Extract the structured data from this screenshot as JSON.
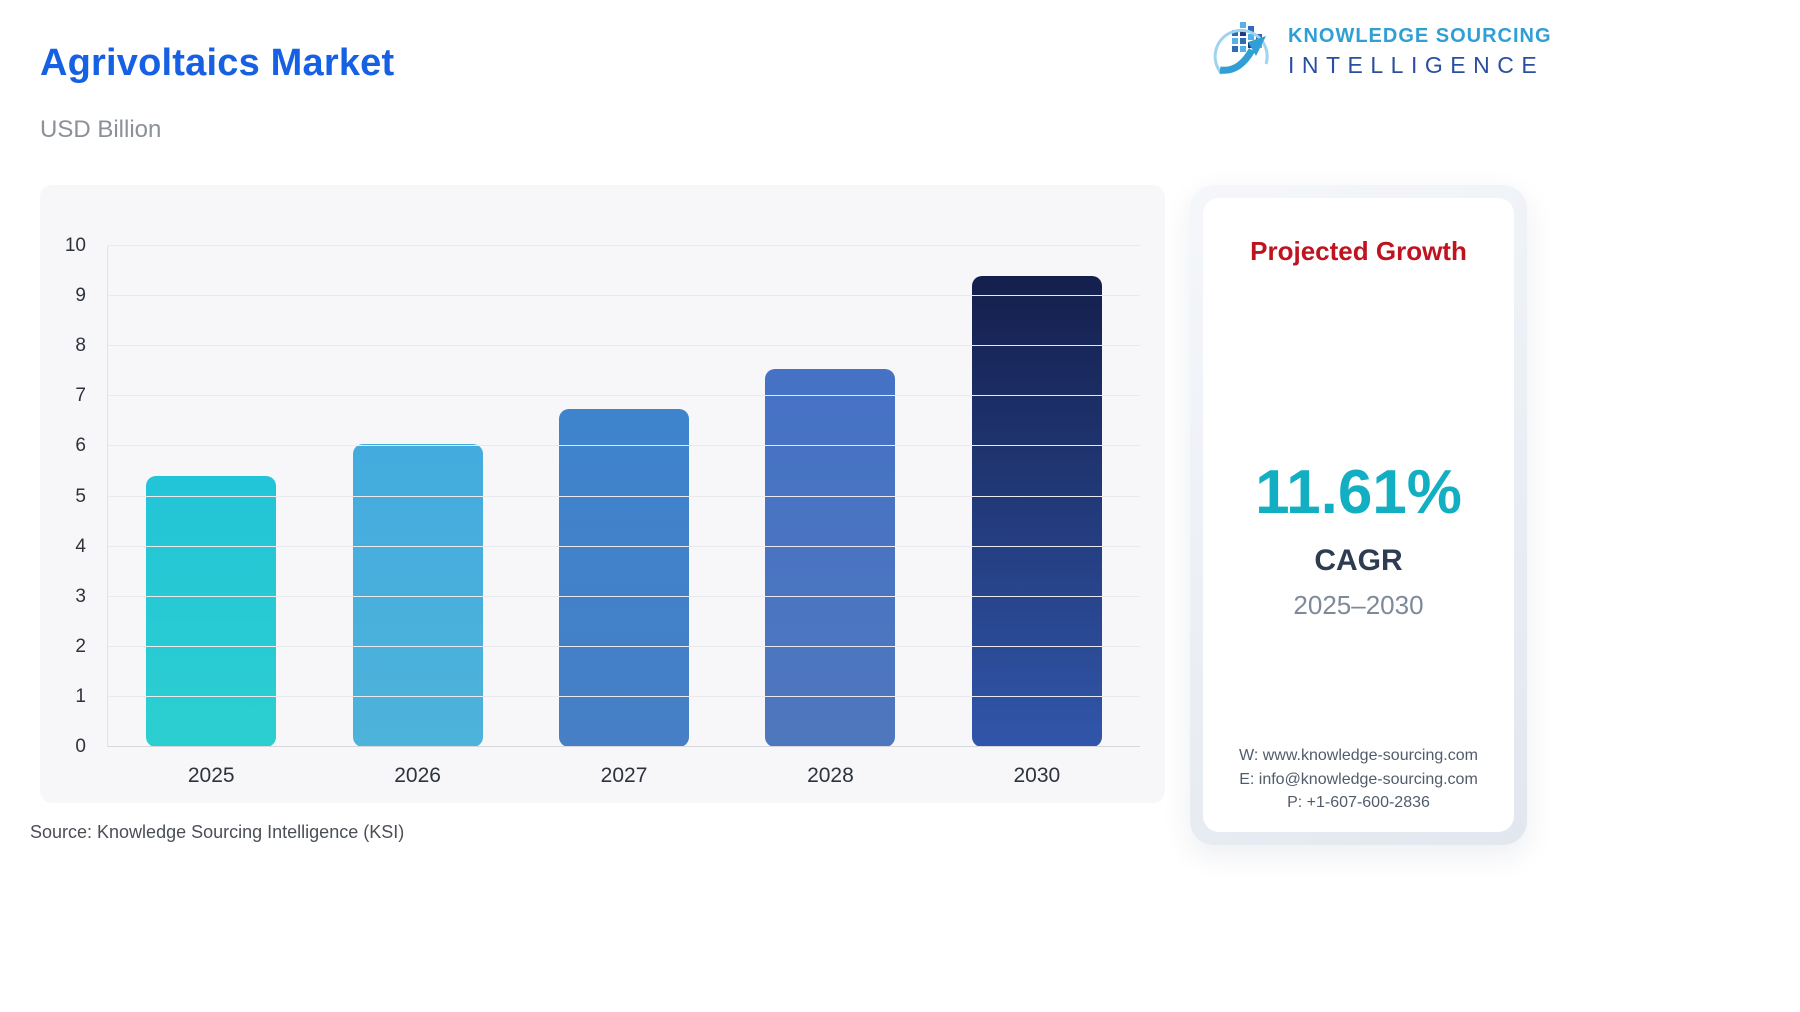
{
  "header": {
    "title": "Agrivoltaics Market",
    "subtitle": "USD Billion",
    "title_color": "#1660e4",
    "logo": {
      "line1": "KNOWLEDGE SOURCING",
      "line2": "INTELLIGENCE"
    }
  },
  "chart_data": {
    "type": "bar",
    "title": "Agrivoltaics Market",
    "unit": "USD Billion",
    "categories": [
      "2025",
      "2026",
      "2027",
      "2028",
      "2030"
    ],
    "values": [
      5.4,
      6.05,
      6.75,
      7.55,
      9.4
    ],
    "ylim": [
      0,
      10
    ],
    "ytick_step": 1,
    "grid": true,
    "legend": "none",
    "bar_gradients": [
      [
        "#22c4d7",
        "#2ccfd0"
      ],
      [
        "#44abdf",
        "#4db3da"
      ],
      [
        "#3e84cd",
        "#467fc6"
      ],
      [
        "#4672c6",
        "#4e77bd"
      ],
      [
        "#141f4c",
        "#3156aa"
      ]
    ]
  },
  "growth_panel": {
    "heading": "Projected Growth",
    "heading_color": "#bf1420",
    "cagr_value": "11.61%",
    "cagr_value_color": "#12aec2",
    "cagr_label": "CAGR",
    "period": "2025–2030",
    "contact": {
      "website": "W: www.knowledge-sourcing.com",
      "email": "E: info@knowledge-sourcing.com",
      "phone": "P: +1-607-600-2836"
    }
  },
  "footer": {
    "source": "Source: Knowledge Sourcing Intelligence (KSI)"
  }
}
